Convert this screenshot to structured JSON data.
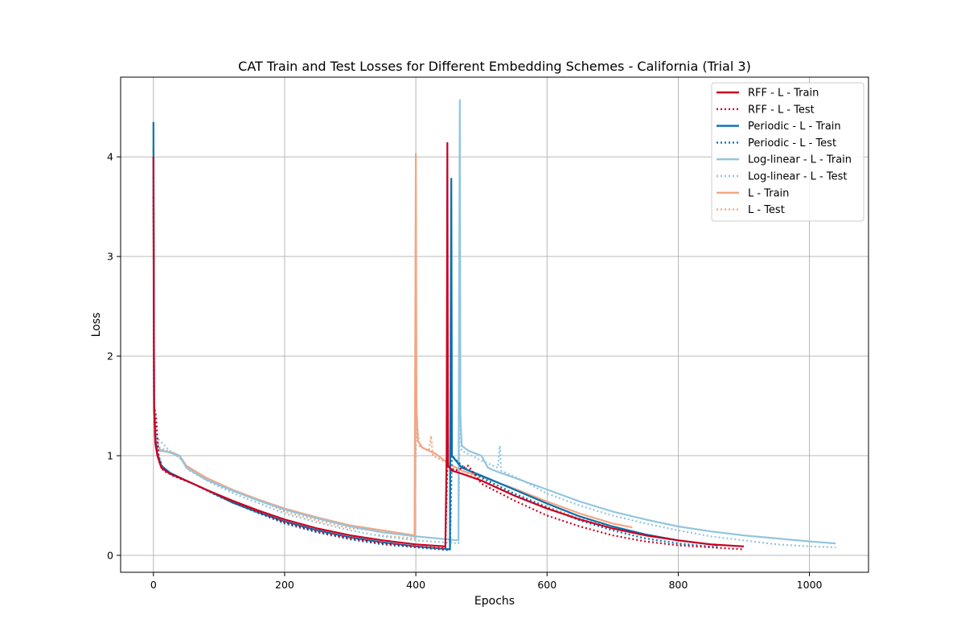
{
  "chart_data": {
    "type": "line",
    "title": "CAT Train and Test Losses for Different Embedding Schemes - California (Trial 3)",
    "xlabel": "Epochs",
    "ylabel": "Loss",
    "xlim": [
      -50,
      1090
    ],
    "ylim": [
      -0.17,
      4.8
    ],
    "xticks": [
      0,
      200,
      400,
      600,
      800,
      1000
    ],
    "yticks": [
      0,
      1,
      2,
      3,
      4
    ],
    "grid": true,
    "legend_position": "top-right",
    "series": [
      {
        "name": "RFF - L - Train",
        "color": "#ca0020",
        "style": "solid",
        "points": [
          [
            0,
            4.0
          ],
          [
            1,
            1.5
          ],
          [
            3,
            1.12
          ],
          [
            6,
            1.0
          ],
          [
            12,
            0.88
          ],
          [
            25,
            0.82
          ],
          [
            50,
            0.75
          ],
          [
            80,
            0.66
          ],
          [
            120,
            0.55
          ],
          [
            160,
            0.45
          ],
          [
            200,
            0.36
          ],
          [
            250,
            0.27
          ],
          [
            300,
            0.2
          ],
          [
            350,
            0.15
          ],
          [
            400,
            0.11
          ],
          [
            445,
            0.09
          ],
          [
            447,
            1.0
          ],
          [
            448,
            4.14
          ],
          [
            449,
            0.9
          ],
          [
            455,
            0.85
          ],
          [
            470,
            0.82
          ],
          [
            500,
            0.75
          ],
          [
            550,
            0.6
          ],
          [
            600,
            0.47
          ],
          [
            650,
            0.36
          ],
          [
            700,
            0.27
          ],
          [
            750,
            0.2
          ],
          [
            800,
            0.15
          ],
          [
            850,
            0.11
          ],
          [
            900,
            0.09
          ]
        ]
      },
      {
        "name": "RFF - L - Test",
        "color": "#ca0020",
        "style": "dotted",
        "points": [
          [
            0,
            3.6
          ],
          [
            1,
            1.5
          ],
          [
            4,
            1.35
          ],
          [
            8,
            0.95
          ],
          [
            15,
            0.85
          ],
          [
            30,
            0.8
          ],
          [
            60,
            0.72
          ],
          [
            100,
            0.6
          ],
          [
            150,
            0.46
          ],
          [
            200,
            0.33
          ],
          [
            250,
            0.24
          ],
          [
            300,
            0.17
          ],
          [
            350,
            0.12
          ],
          [
            400,
            0.09
          ],
          [
            445,
            0.07
          ],
          [
            448,
            0.9
          ],
          [
            460,
            0.85
          ],
          [
            480,
            0.9
          ],
          [
            500,
            0.72
          ],
          [
            550,
            0.55
          ],
          [
            600,
            0.4
          ],
          [
            650,
            0.29
          ],
          [
            700,
            0.2
          ],
          [
            750,
            0.14
          ],
          [
            800,
            0.1
          ],
          [
            850,
            0.08
          ],
          [
            900,
            0.06
          ]
        ]
      },
      {
        "name": "Periodic - L - Train",
        "color": "#0571b0",
        "style": "solid",
        "points": [
          [
            0,
            4.35
          ],
          [
            1,
            1.5
          ],
          [
            3,
            1.15
          ],
          [
            6,
            1.02
          ],
          [
            12,
            0.9
          ],
          [
            25,
            0.83
          ],
          [
            50,
            0.75
          ],
          [
            80,
            0.66
          ],
          [
            120,
            0.53
          ],
          [
            160,
            0.43
          ],
          [
            200,
            0.34
          ],
          [
            250,
            0.25
          ],
          [
            300,
            0.18
          ],
          [
            350,
            0.13
          ],
          [
            400,
            0.09
          ],
          [
            452,
            0.06
          ],
          [
            453,
            2.0
          ],
          [
            454,
            3.78
          ],
          [
            455,
            1.0
          ],
          [
            470,
            0.88
          ],
          [
            500,
            0.8
          ],
          [
            550,
            0.66
          ],
          [
            600,
            0.52
          ],
          [
            650,
            0.39
          ],
          [
            700,
            0.29
          ],
          [
            750,
            0.21
          ],
          [
            800,
            0.15
          ],
          [
            860,
            0.1
          ]
        ]
      },
      {
        "name": "Periodic - L - Test",
        "color": "#0571b0",
        "style": "dotted",
        "points": [
          [
            0,
            3.8
          ],
          [
            1,
            1.5
          ],
          [
            4,
            1.4
          ],
          [
            8,
            1.0
          ],
          [
            15,
            0.86
          ],
          [
            30,
            0.8
          ],
          [
            60,
            0.72
          ],
          [
            100,
            0.59
          ],
          [
            150,
            0.45
          ],
          [
            200,
            0.32
          ],
          [
            250,
            0.23
          ],
          [
            300,
            0.16
          ],
          [
            350,
            0.11
          ],
          [
            400,
            0.08
          ],
          [
            452,
            0.05
          ],
          [
            455,
            1.0
          ],
          [
            470,
            0.9
          ],
          [
            500,
            0.78
          ],
          [
            550,
            0.62
          ],
          [
            600,
            0.48
          ],
          [
            650,
            0.35
          ],
          [
            700,
            0.25
          ],
          [
            750,
            0.17
          ],
          [
            800,
            0.12
          ],
          [
            860,
            0.08
          ]
        ]
      },
      {
        "name": "Log-linear - L - Train",
        "color": "#92c5de",
        "style": "solid",
        "points": [
          [
            0,
            4.1
          ],
          [
            1,
            1.5
          ],
          [
            3,
            1.15
          ],
          [
            10,
            1.06
          ],
          [
            30,
            1.02
          ],
          [
            40,
            1.0
          ],
          [
            50,
            0.88
          ],
          [
            80,
            0.76
          ],
          [
            120,
            0.65
          ],
          [
            160,
            0.55
          ],
          [
            200,
            0.46
          ],
          [
            250,
            0.37
          ],
          [
            300,
            0.29
          ],
          [
            350,
            0.23
          ],
          [
            400,
            0.19
          ],
          [
            465,
            0.15
          ],
          [
            466,
            2.5
          ],
          [
            467,
            4.57
          ],
          [
            468,
            1.4
          ],
          [
            470,
            1.1
          ],
          [
            480,
            1.05
          ],
          [
            500,
            1.0
          ],
          [
            510,
            0.88
          ],
          [
            520,
            0.85
          ],
          [
            550,
            0.78
          ],
          [
            600,
            0.66
          ],
          [
            650,
            0.54
          ],
          [
            700,
            0.44
          ],
          [
            750,
            0.36
          ],
          [
            800,
            0.29
          ],
          [
            850,
            0.24
          ],
          [
            900,
            0.2
          ],
          [
            950,
            0.17
          ],
          [
            1000,
            0.14
          ],
          [
            1040,
            0.12
          ]
        ]
      },
      {
        "name": "Log-linear - L - Test",
        "color": "#92c5de",
        "style": "dotted",
        "points": [
          [
            0,
            3.7
          ],
          [
            1,
            1.5
          ],
          [
            4,
            1.2
          ],
          [
            10,
            1.15
          ],
          [
            25,
            1.05
          ],
          [
            40,
            0.98
          ],
          [
            55,
            0.85
          ],
          [
            90,
            0.72
          ],
          [
            130,
            0.6
          ],
          [
            170,
            0.5
          ],
          [
            200,
            0.42
          ],
          [
            250,
            0.33
          ],
          [
            300,
            0.25
          ],
          [
            350,
            0.19
          ],
          [
            400,
            0.15
          ],
          [
            465,
            0.12
          ],
          [
            467,
            1.4
          ],
          [
            470,
            1.05
          ],
          [
            500,
            0.95
          ],
          [
            525,
            0.88
          ],
          [
            528,
            1.1
          ],
          [
            530,
            0.85
          ],
          [
            560,
            0.76
          ],
          [
            600,
            0.62
          ],
          [
            650,
            0.5
          ],
          [
            700,
            0.4
          ],
          [
            750,
            0.32
          ],
          [
            800,
            0.25
          ],
          [
            850,
            0.19
          ],
          [
            900,
            0.15
          ],
          [
            950,
            0.11
          ],
          [
            1000,
            0.09
          ],
          [
            1040,
            0.08
          ]
        ]
      },
      {
        "name": "L - Train",
        "color": "#f4a582",
        "style": "solid",
        "points": [
          [
            0,
            3.52
          ],
          [
            1,
            1.5
          ],
          [
            3,
            1.12
          ],
          [
            10,
            1.05
          ],
          [
            30,
            1.03
          ],
          [
            40,
            1.0
          ],
          [
            50,
            0.9
          ],
          [
            80,
            0.78
          ],
          [
            120,
            0.66
          ],
          [
            160,
            0.56
          ],
          [
            200,
            0.47
          ],
          [
            250,
            0.38
          ],
          [
            300,
            0.3
          ],
          [
            350,
            0.25
          ],
          [
            398,
            0.2
          ],
          [
            399,
            2.0
          ],
          [
            400,
            4.03
          ],
          [
            401,
            1.5
          ],
          [
            403,
            1.15
          ],
          [
            410,
            1.08
          ],
          [
            430,
            1.02
          ],
          [
            450,
            0.92
          ],
          [
            470,
            0.85
          ],
          [
            500,
            0.79
          ],
          [
            550,
            0.67
          ],
          [
            600,
            0.54
          ],
          [
            650,
            0.42
          ],
          [
            700,
            0.32
          ],
          [
            730,
            0.28
          ]
        ]
      },
      {
        "name": "L - Test",
        "color": "#f4a582",
        "style": "dotted",
        "points": [
          [
            0,
            3.3
          ],
          [
            1,
            1.5
          ],
          [
            4,
            1.18
          ],
          [
            10,
            1.08
          ],
          [
            25,
            1.04
          ],
          [
            40,
            0.98
          ],
          [
            55,
            0.86
          ],
          [
            90,
            0.74
          ],
          [
            130,
            0.63
          ],
          [
            170,
            0.53
          ],
          [
            200,
            0.44
          ],
          [
            250,
            0.35
          ],
          [
            300,
            0.27
          ],
          [
            340,
            0.25
          ],
          [
            345,
            0.2
          ],
          [
            398,
            0.17
          ],
          [
            401,
            1.4
          ],
          [
            405,
            1.1
          ],
          [
            420,
            1.05
          ],
          [
            423,
            1.2
          ],
          [
            426,
            1.0
          ],
          [
            450,
            0.92
          ],
          [
            470,
            0.85
          ],
          [
            500,
            0.76
          ],
          [
            550,
            0.62
          ],
          [
            600,
            0.49
          ],
          [
            650,
            0.37
          ],
          [
            700,
            0.28
          ],
          [
            730,
            0.24
          ]
        ]
      }
    ]
  }
}
